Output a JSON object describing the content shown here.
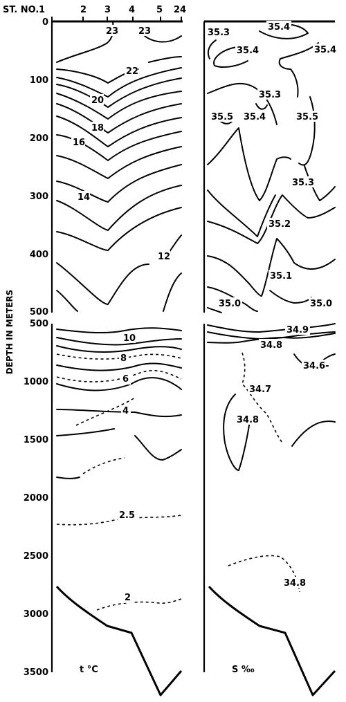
{
  "chart_data": {
    "type": "contour-section",
    "y_axis": {
      "label": "DEPTH IN METERS",
      "upper_ticks": [
        "0",
        "100",
        "200",
        "300",
        "400",
        "500"
      ],
      "lower_ticks": [
        "500",
        "1000",
        "1500",
        "2000",
        "2500",
        "3000",
        "3500"
      ]
    },
    "stations": {
      "prefix": "ST. NO.",
      "labels": [
        "1",
        "2",
        "3",
        "4",
        "5",
        "24"
      ]
    },
    "panels": [
      {
        "name": "t °C",
        "contour_labels": [
          "23",
          "23",
          "22",
          "20",
          "18",
          "16",
          "14",
          "12",
          "10",
          "8",
          "6",
          "4",
          "2.5",
          "2"
        ]
      },
      {
        "name": "S ‰",
        "contour_labels": [
          "35.3",
          "35.4",
          "35.4",
          "35.4",
          "35.3",
          "35.5",
          "35.4",
          "35.5",
          "35.3",
          "35.2",
          "35.1",
          "35.0",
          "35.0",
          "34.9",
          "34.8",
          "34.6-",
          "34.7",
          "34.8",
          "34.8"
        ]
      }
    ]
  }
}
